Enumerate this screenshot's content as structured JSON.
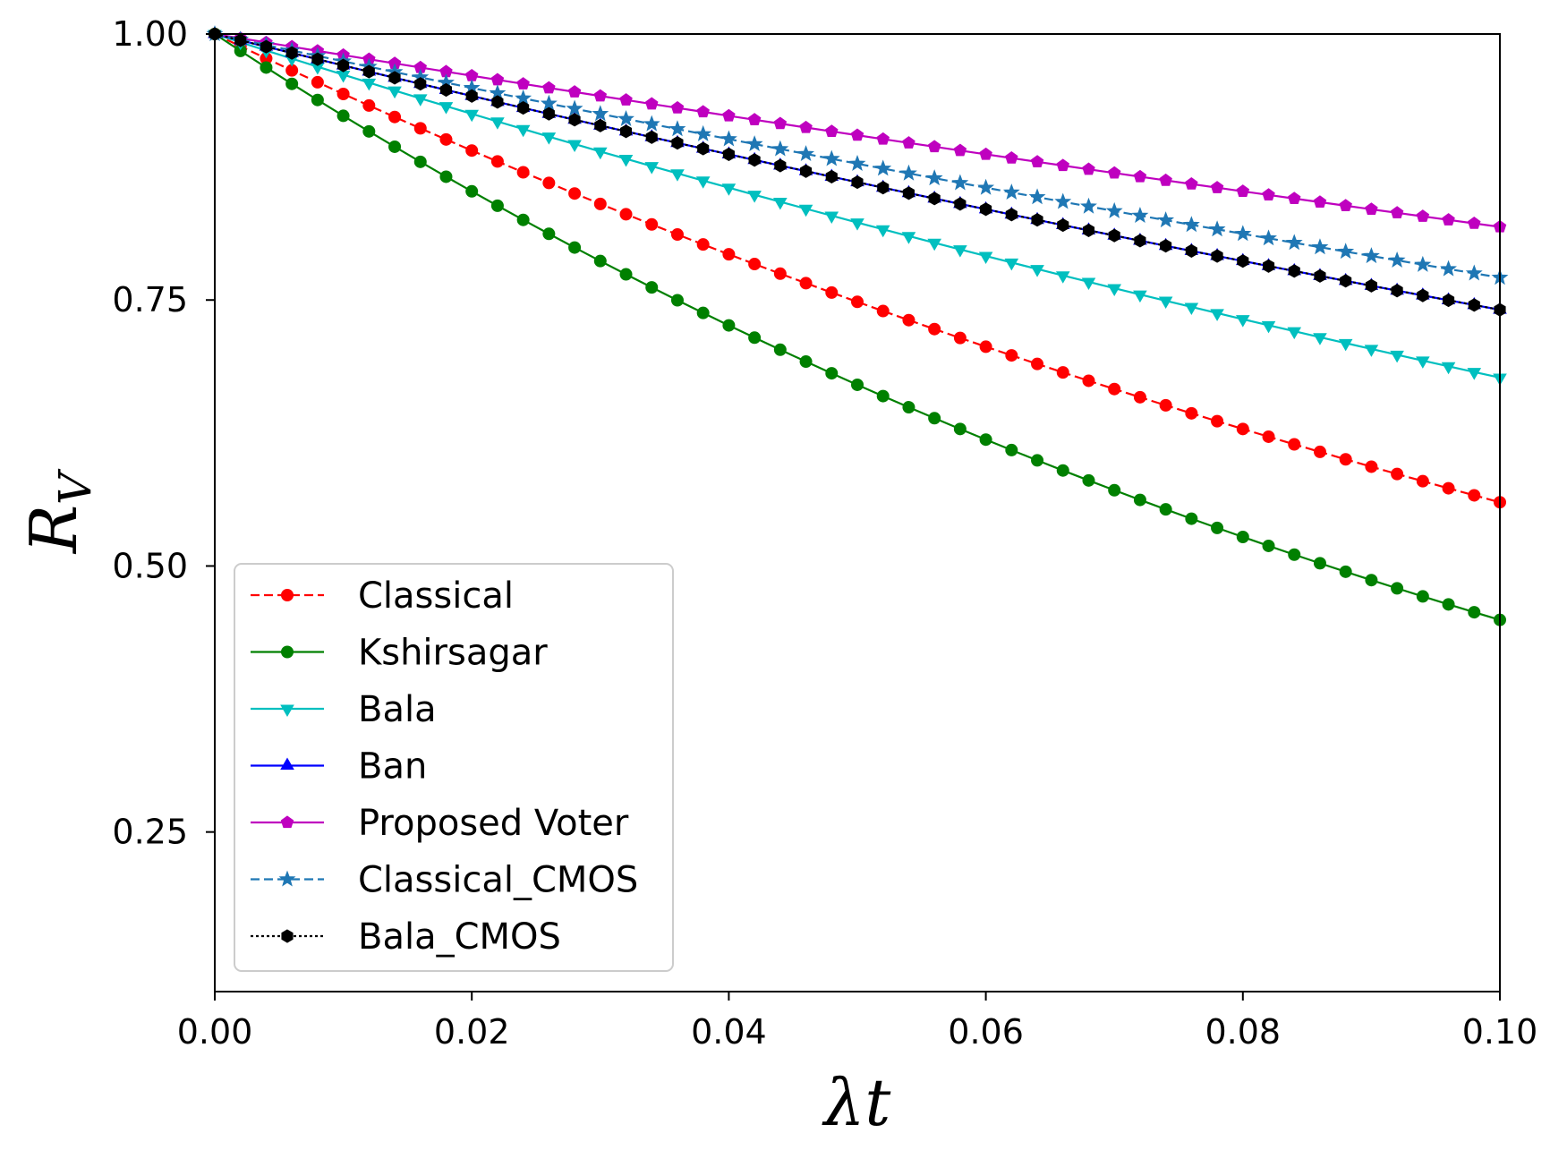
{
  "chart_data": {
    "type": "line",
    "title": "",
    "xlabel": "λt",
    "ylabel": "R_V",
    "ylabel_main": "R",
    "ylabel_sub": "V",
    "xlim": [
      0,
      0.1
    ],
    "ylim": [
      0.1,
      1.0
    ],
    "xticks": [
      0.0,
      0.02,
      0.04,
      0.06,
      0.08,
      0.1
    ],
    "xtick_labels": [
      "0.00",
      "0.02",
      "0.04",
      "0.06",
      "0.08",
      "0.10"
    ],
    "yticks": [
      0.25,
      0.5,
      0.75,
      1.0
    ],
    "ytick_labels": [
      "0.25",
      "0.50",
      "0.75",
      "1.00"
    ],
    "grid": false,
    "legend_position": "lower-left",
    "x_sampling": {
      "start": 0,
      "end": 0.1,
      "points": 51
    },
    "series": [
      {
        "name": "Classical",
        "formula": "exp(-5.8*x)",
        "endpoints": [
          1.0,
          0.56
        ],
        "color": "#ff0000",
        "dash": "dashed",
        "marker": "circle"
      },
      {
        "name": "Kshirsagar",
        "formula": "exp(-8.0*x)",
        "endpoints": [
          1.0,
          0.45
        ],
        "color": "#008000",
        "dash": "solid",
        "marker": "circle"
      },
      {
        "name": "Bala",
        "formula": "exp(-3.9*x)",
        "endpoints": [
          1.0,
          0.68
        ],
        "color": "#00bfbf",
        "dash": "solid",
        "marker": "triangle-down"
      },
      {
        "name": "Ban",
        "formula": "exp(-3.0*x)",
        "endpoints": [
          1.0,
          0.74
        ],
        "color": "#0000ff",
        "dash": "solid",
        "marker": "triangle-up"
      },
      {
        "name": "Proposed Voter",
        "formula": "exp(-2.0*x)",
        "endpoints": [
          1.0,
          0.82
        ],
        "color": "#bf00bf",
        "dash": "solid",
        "marker": "pentagon"
      },
      {
        "name": "Classical_CMOS",
        "formula": "exp(-2.6*x)",
        "endpoints": [
          1.0,
          0.77
        ],
        "color": "#1f77b4",
        "dash": "dashed",
        "marker": "star"
      },
      {
        "name": "Bala_CMOS",
        "formula": "exp(-3.0*x)",
        "endpoints": [
          1.0,
          0.74
        ],
        "color": "#000000",
        "dash": "dotted",
        "marker": "hexagon"
      }
    ]
  }
}
